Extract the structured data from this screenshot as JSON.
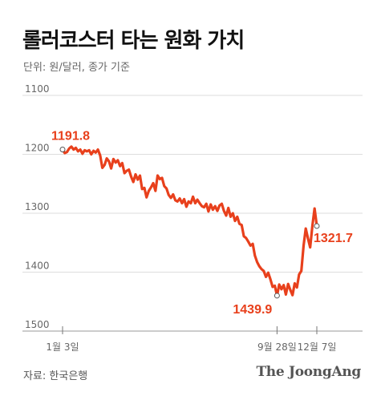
{
  "header": {
    "title": "롤러코스터 타는 원화 가치",
    "subtitle": "단위: 원/달러, 종가 기준"
  },
  "footer": {
    "source": "자료: 한국은행",
    "logo": "The JoongAng"
  },
  "colors": {
    "line": "#e8401c",
    "grid": "#dddddd",
    "axis": "#999999"
  },
  "chart_data": {
    "type": "line",
    "title": "롤러코스터 타는 원화 가치",
    "subtitle": "단위: 원/달러, 종가 기준",
    "y_inverted": true,
    "ylim": [
      1100,
      1500
    ],
    "y_ticks": [
      1100,
      1200,
      1300,
      1400,
      1500
    ],
    "x_tick_labels": [
      "1월 3일",
      "9월 28일",
      "12월 7일"
    ],
    "x_tick_positions": [
      0,
      97,
      115
    ],
    "xlim": [
      0,
      119
    ],
    "grid": true,
    "annotations": [
      {
        "label": "1191.8",
        "x": 0,
        "y": 1191.8
      },
      {
        "label": "1439.9",
        "x": 97,
        "y": 1439.9
      },
      {
        "label": "1321.7",
        "x": 115,
        "y": 1321.7
      }
    ],
    "series": [
      {
        "values": [
          [
            0,
            1191.8
          ],
          [
            1,
            1198
          ],
          [
            2,
            1196
          ],
          [
            3,
            1190
          ],
          [
            4,
            1187
          ],
          [
            5,
            1192
          ],
          [
            6,
            1189
          ],
          [
            7,
            1195
          ],
          [
            8,
            1192
          ],
          [
            9,
            1199
          ],
          [
            10,
            1193
          ],
          [
            11,
            1195
          ],
          [
            12,
            1193
          ],
          [
            13,
            1200
          ],
          [
            14,
            1194
          ],
          [
            15,
            1197
          ],
          [
            16,
            1192
          ],
          [
            17,
            1202
          ],
          [
            18,
            1223
          ],
          [
            19,
            1218
          ],
          [
            20,
            1207
          ],
          [
            21,
            1212
          ],
          [
            22,
            1224
          ],
          [
            23,
            1208
          ],
          [
            24,
            1214
          ],
          [
            25,
            1210
          ],
          [
            26,
            1220
          ],
          [
            27,
            1215
          ],
          [
            28,
            1232
          ],
          [
            29,
            1228
          ],
          [
            30,
            1226
          ],
          [
            31,
            1238
          ],
          [
            32,
            1247
          ],
          [
            33,
            1234
          ],
          [
            34,
            1243
          ],
          [
            35,
            1236
          ],
          [
            36,
            1259
          ],
          [
            37,
            1257
          ],
          [
            38,
            1273
          ],
          [
            39,
            1262
          ],
          [
            40,
            1256
          ],
          [
            41,
            1249
          ],
          [
            42,
            1262
          ],
          [
            43,
            1236
          ],
          [
            44,
            1242
          ],
          [
            45,
            1240
          ],
          [
            46,
            1254
          ],
          [
            47,
            1258
          ],
          [
            48,
            1269
          ],
          [
            49,
            1274
          ],
          [
            50,
            1268
          ],
          [
            51,
            1278
          ],
          [
            52,
            1280
          ],
          [
            53,
            1275
          ],
          [
            54,
            1283
          ],
          [
            55,
            1276
          ],
          [
            56,
            1289
          ],
          [
            57,
            1280
          ],
          [
            58,
            1283
          ],
          [
            59,
            1272
          ],
          [
            60,
            1283
          ],
          [
            61,
            1277
          ],
          [
            62,
            1283
          ],
          [
            63,
            1288
          ],
          [
            64,
            1290
          ],
          [
            65,
            1284
          ],
          [
            66,
            1297
          ],
          [
            67,
            1285
          ],
          [
            68,
            1294
          ],
          [
            69,
            1288
          ],
          [
            70,
            1296
          ],
          [
            71,
            1287
          ],
          [
            72,
            1284
          ],
          [
            73,
            1296
          ],
          [
            74,
            1304
          ],
          [
            75,
            1291
          ],
          [
            76,
            1306
          ],
          [
            77,
            1300
          ],
          [
            78,
            1313
          ],
          [
            79,
            1306
          ],
          [
            80,
            1318
          ],
          [
            81,
            1320
          ],
          [
            82,
            1339
          ],
          [
            83,
            1342
          ],
          [
            84,
            1348
          ],
          [
            85,
            1355
          ],
          [
            86,
            1352
          ],
          [
            87,
            1372
          ],
          [
            88,
            1383
          ],
          [
            89,
            1390
          ],
          [
            90,
            1395
          ],
          [
            91,
            1398
          ],
          [
            92,
            1408
          ],
          [
            93,
            1401
          ],
          [
            94,
            1412
          ],
          [
            95,
            1425
          ],
          [
            96,
            1423
          ],
          [
            97,
            1439.9
          ],
          [
            98,
            1421
          ],
          [
            99,
            1429
          ],
          [
            100,
            1422
          ],
          [
            101,
            1438
          ],
          [
            102,
            1420
          ],
          [
            103,
            1430
          ],
          [
            104,
            1439
          ],
          [
            105,
            1419
          ],
          [
            106,
            1426
          ],
          [
            107,
            1404
          ],
          [
            108,
            1398
          ],
          [
            109,
            1355
          ],
          [
            110,
            1326
          ],
          [
            111,
            1343
          ],
          [
            112,
            1358
          ],
          [
            113,
            1321
          ],
          [
            114,
            1292
          ],
          [
            115,
            1321.7
          ]
        ]
      }
    ]
  }
}
